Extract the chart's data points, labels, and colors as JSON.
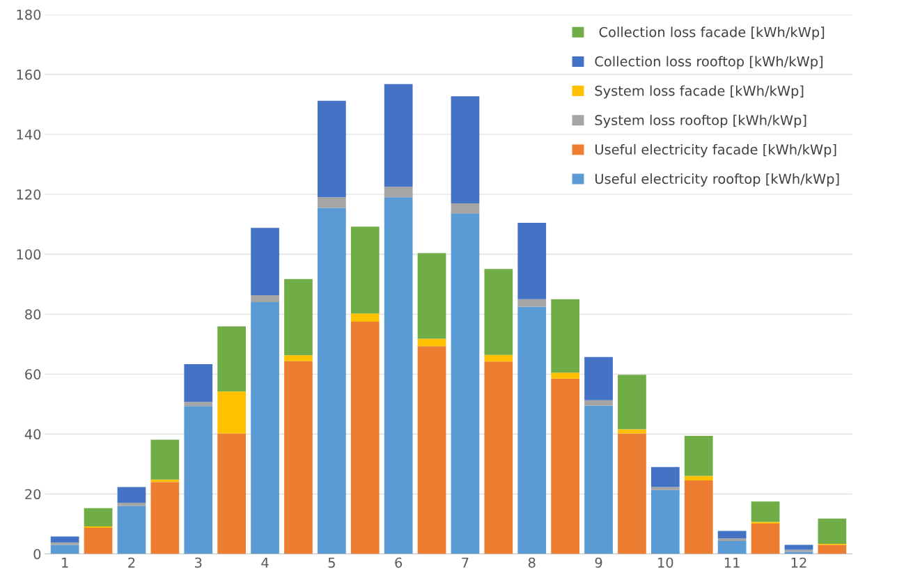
{
  "chart_data": {
    "type": "bar",
    "stacked": true,
    "categories": [
      "1",
      null,
      "2",
      null,
      "3",
      null,
      "4",
      null,
      "5",
      null,
      "6",
      null,
      "7",
      null,
      "8",
      null,
      "9",
      null,
      "10",
      null,
      "11",
      null,
      "12",
      null
    ],
    "series": [
      {
        "name": "Useful electricity rooftop [kWh/kWp]",
        "color": "#5b9bd5",
        "values": [
          3.0,
          null,
          16,
          null,
          49.3,
          null,
          84,
          null,
          115.5,
          null,
          119,
          null,
          113.5,
          null,
          82.5,
          null,
          49.5,
          null,
          21.3,
          null,
          4.3,
          null,
          0.7,
          null
        ]
      },
      {
        "name": "Useful electricity facade [kWh/kWp]",
        "color": "#ed7d31",
        "values": [
          null,
          8.7,
          null,
          24,
          null,
          40.2,
          null,
          64.3,
          null,
          77.5,
          null,
          69.3,
          null,
          64.2,
          null,
          58.5,
          null,
          40.2,
          null,
          24.5,
          null,
          10.1,
          null,
          3
        ]
      },
      {
        "name": "System loss rooftop [kWh/kWp]",
        "color": "#a5a5a5",
        "values": [
          0.8,
          null,
          1,
          null,
          1.4,
          null,
          2.3,
          null,
          3.5,
          null,
          3.5,
          null,
          3.5,
          null,
          2.5,
          null,
          1.8,
          null,
          1,
          null,
          0.9,
          null,
          0.7,
          null
        ]
      },
      {
        "name": "System loss facade [kWh/kWp]",
        "color": "#ffc000",
        "values": [
          null,
          0.5,
          null,
          0.8,
          null,
          14,
          null,
          2,
          null,
          2.7,
          null,
          2.5,
          null,
          2.2,
          null,
          2,
          null,
          1.4,
          null,
          1.5,
          null,
          0.6,
          null,
          0.4
        ]
      },
      {
        "name": "Collection loss rooftop [kWh/kWp]",
        "color": "#4472c4",
        "values": [
          2,
          null,
          5.3,
          null,
          12.6,
          null,
          22.5,
          null,
          32.2,
          null,
          34.3,
          null,
          35.7,
          null,
          25.5,
          null,
          14.4,
          null,
          6.7,
          null,
          2.5,
          null,
          1.6,
          null
        ]
      },
      {
        "name": " Collection loss facade [kWh/kWp]",
        "color": "#70ad47",
        "values": [
          null,
          6.1,
          null,
          13.3,
          null,
          21.7,
          null,
          25.4,
          null,
          29,
          null,
          28.6,
          null,
          28.7,
          null,
          24.5,
          null,
          18.2,
          null,
          13.4,
          null,
          6.8,
          null,
          8.4
        ]
      }
    ],
    "ylim": [
      0,
      180
    ],
    "yticks": [
      0,
      20,
      40,
      60,
      80,
      100,
      120,
      140,
      160,
      180
    ],
    "grid": "y",
    "legend": "right"
  }
}
